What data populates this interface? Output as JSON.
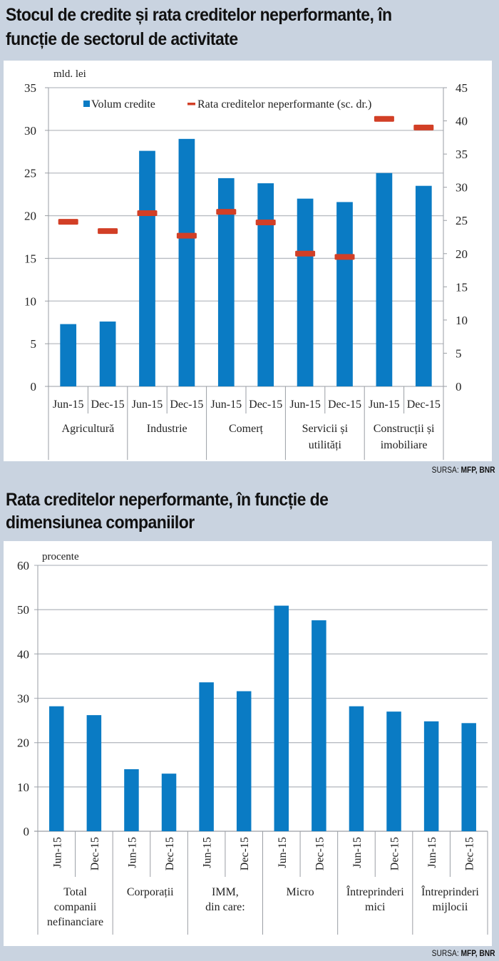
{
  "chart1": {
    "title_line1": "Stocul de credite și rata creditelor neperformante, în",
    "title_line2": "funcție de sectorul de activitate",
    "source_label": "SURSA:",
    "source_value": "MFP, BNR"
  },
  "chart2": {
    "title_line1": "Rata creditelor neperformante, în funcție de",
    "title_line2": "dimensiunea companiilor",
    "source_label": "SURSA:",
    "source_value": "MFP, BNR"
  },
  "colors": {
    "bar": "#0a7bc4",
    "marker": "#d23f26",
    "grid": "#b8bcc2",
    "axis": "#9a9ea4"
  },
  "chart_data": [
    {
      "type": "bar",
      "title": "Stocul de credite și rata creditelor neperformante, în funcție de sectorul de activitate",
      "ylabel": "mld. lei",
      "ylabel_right": "",
      "ylim": [
        0,
        35
      ],
      "yticks": [
        0,
        5,
        10,
        15,
        20,
        25,
        30,
        35
      ],
      "ylim_right": [
        0,
        45
      ],
      "yticks_right": [
        0,
        5,
        10,
        15,
        20,
        25,
        30,
        35,
        40,
        45
      ],
      "grid": true,
      "legend": "top",
      "groups": [
        "Agricultură",
        "Industrie",
        "Comerț",
        "Servicii și|utilități",
        "Construcții și|imobiliare"
      ],
      "categories": [
        "Jun-15",
        "Dec-15",
        "Jun-15",
        "Dec-15",
        "Jun-15",
        "Dec-15",
        "Jun-15",
        "Dec-15",
        "Jun-15",
        "Dec-15"
      ],
      "series": [
        {
          "name": "Volum credite",
          "type": "bar",
          "axis": "left",
          "values": [
            7.3,
            7.6,
            27.6,
            29.0,
            24.4,
            23.8,
            22.0,
            21.6,
            25.0,
            23.5
          ]
        },
        {
          "name": "Rata creditelor neperformante (sc. dr.)",
          "type": "marker",
          "axis": "right",
          "values": [
            24.8,
            23.4,
            26.1,
            22.7,
            26.3,
            24.7,
            20.0,
            19.5,
            40.3,
            39.0
          ]
        }
      ]
    },
    {
      "type": "bar",
      "title": "Rata creditelor neperformante, în funcție de dimensiunea companiilor",
      "ylabel": "procente",
      "ylim": [
        0,
        60
      ],
      "yticks": [
        0,
        10,
        20,
        30,
        40,
        50,
        60
      ],
      "grid": true,
      "groups": [
        "Total|companii|nefinanciare",
        "Corporații",
        "IMM,|din care:",
        "Micro",
        "Întreprinderi|mici",
        "Întreprinderi|mijlocii"
      ],
      "categories": [
        "Jun-15",
        "Dec-15",
        "Jun-15",
        "Dec-15",
        "Jun-15",
        "Dec-15",
        "Jun-15",
        "Dec-15",
        "Jun-15",
        "Dec-15",
        "Jun-15",
        "Dec-15"
      ],
      "series": [
        {
          "name": "Rata creditelor neperformante",
          "type": "bar",
          "values": [
            28.2,
            26.2,
            14.0,
            13.0,
            33.6,
            31.6,
            50.9,
            47.6,
            28.2,
            27.0,
            24.8,
            24.4
          ]
        }
      ]
    }
  ]
}
